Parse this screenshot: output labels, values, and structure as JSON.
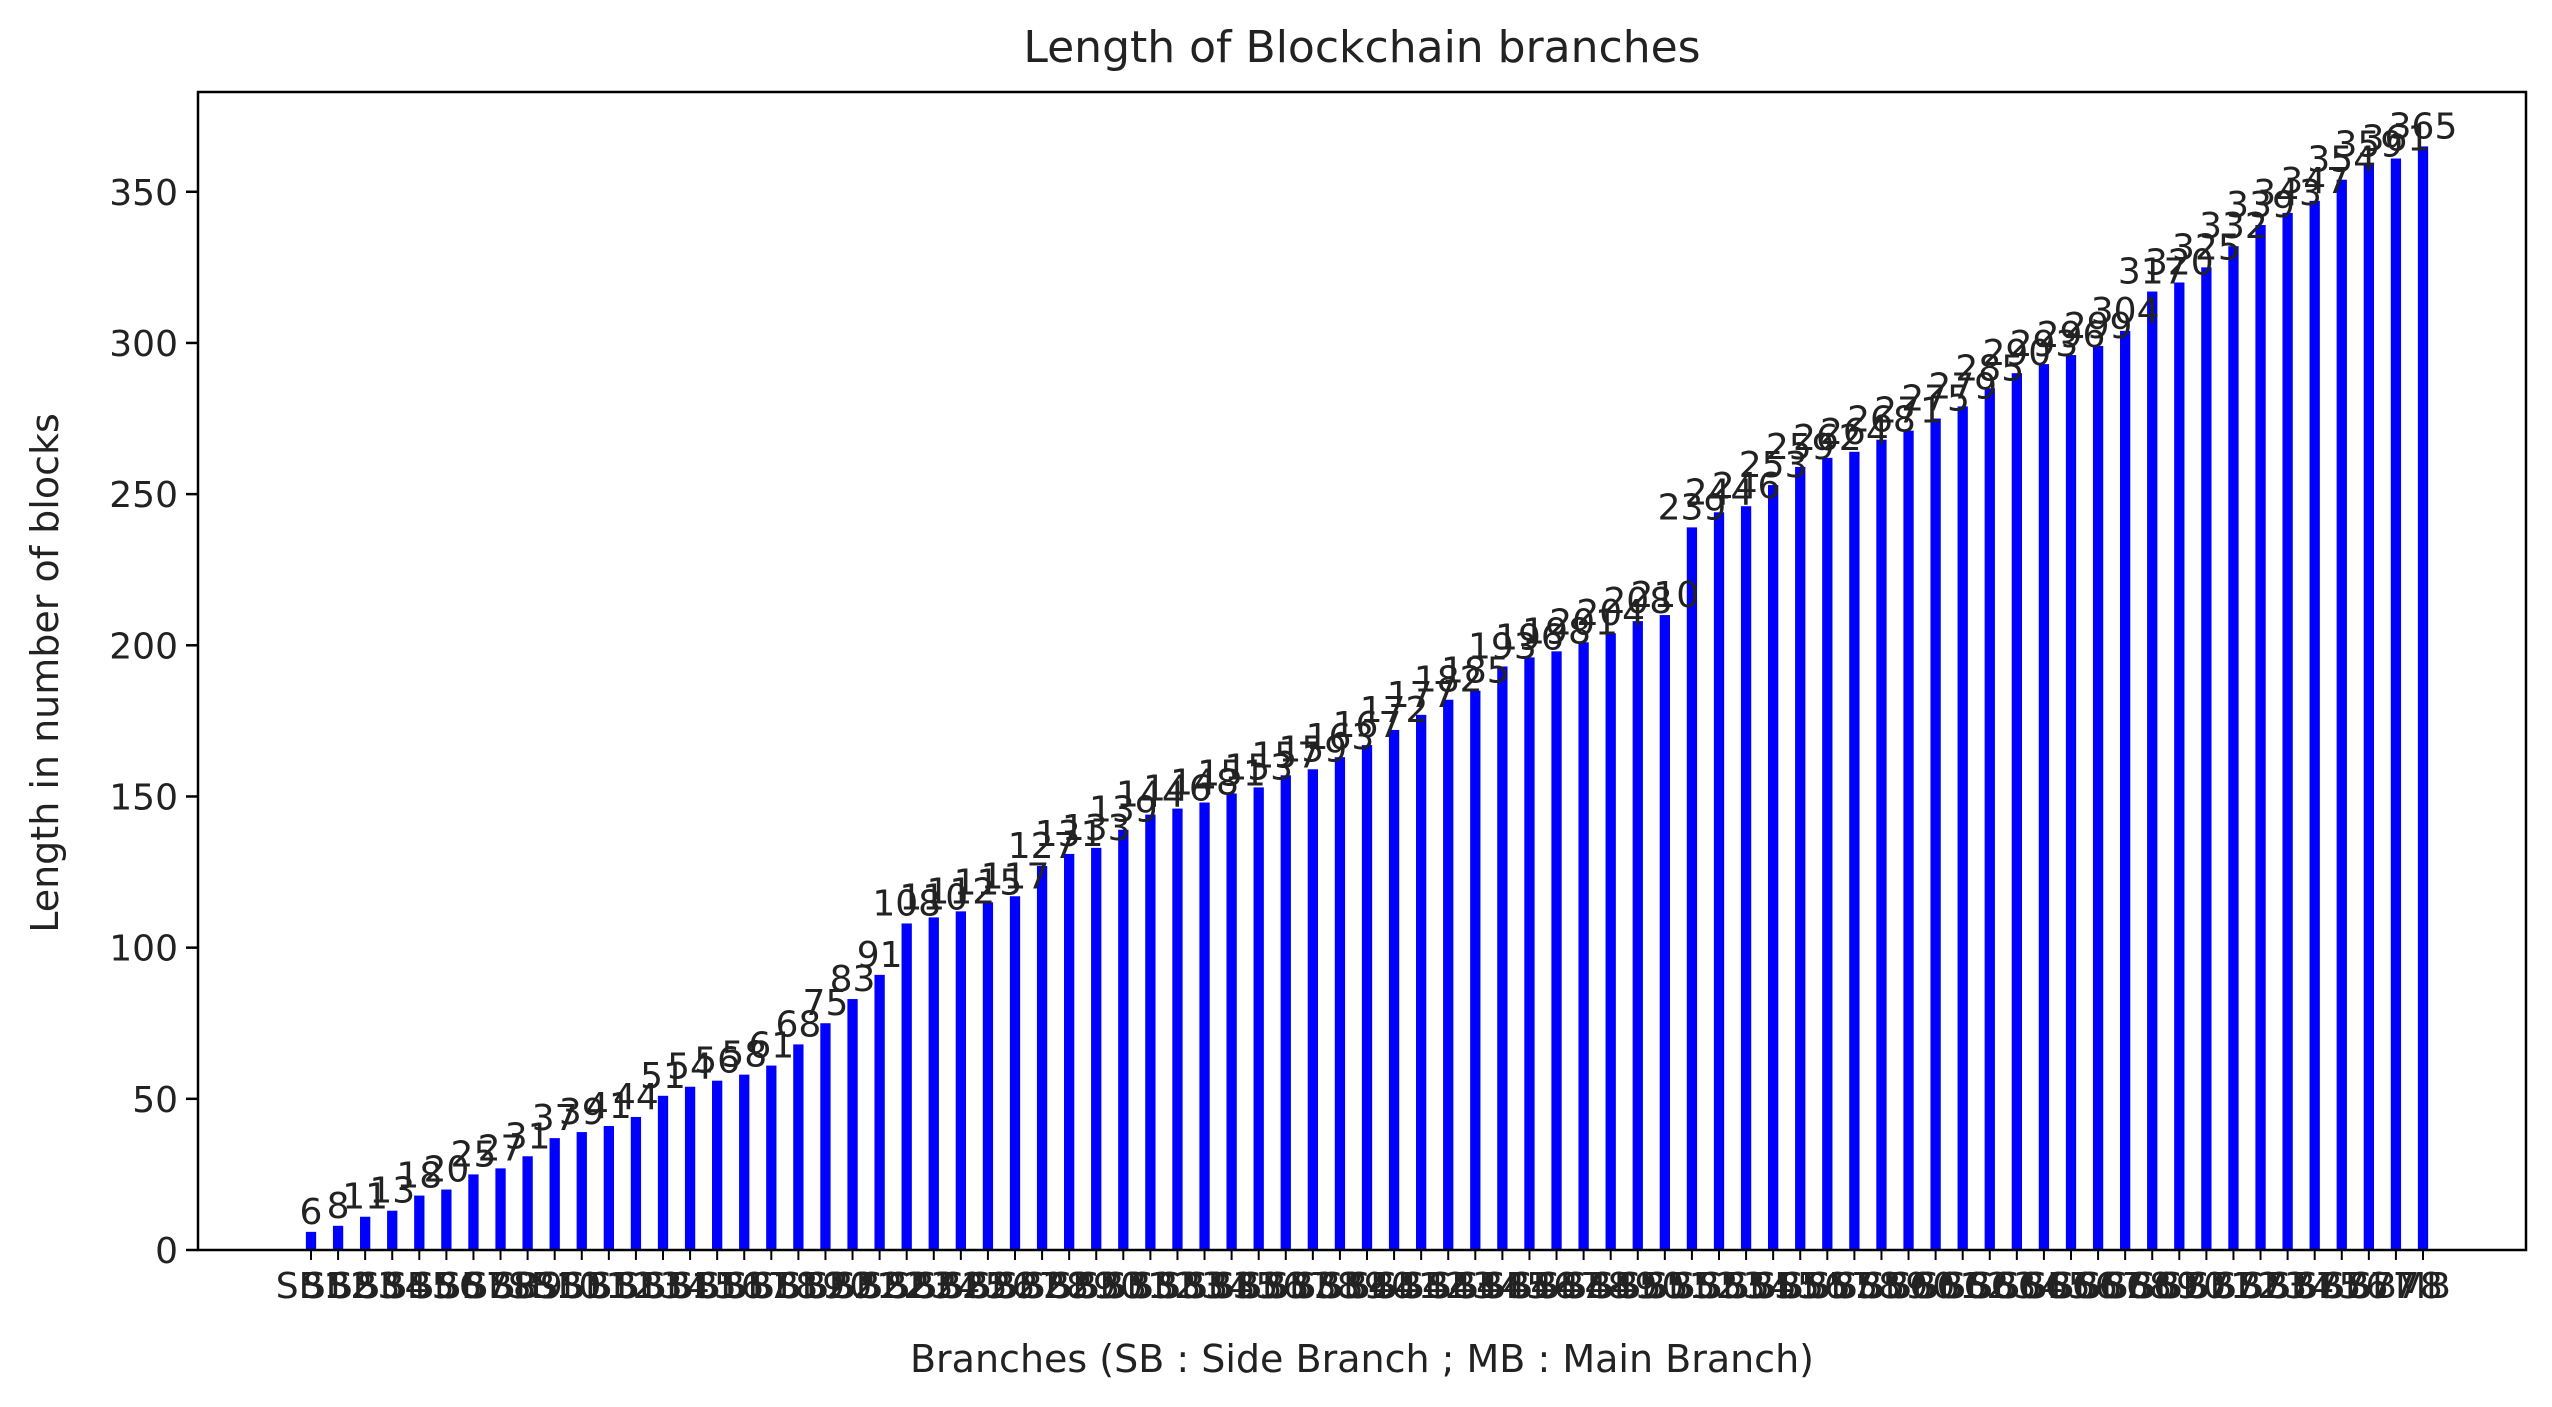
{
  "chart_data": {
    "type": "bar",
    "title": "Length of Blockchain branches",
    "xlabel": "Branches (SB : Side Branch ; MB : Main Branch)",
    "ylabel": "Length in number of blocks",
    "ylim": [
      0,
      383
    ],
    "yticks": [
      0,
      50,
      100,
      150,
      200,
      250,
      300,
      350
    ],
    "bar_color": "#0000ff",
    "grid": false,
    "categories": [
      "SB1",
      "SB2",
      "SB3",
      "SB4",
      "SB5",
      "SB6",
      "SB7",
      "SB8",
      "SB9",
      "SB10",
      "SB11",
      "SB12",
      "SB13",
      "SB14",
      "SB15",
      "SB16",
      "SB17",
      "SB18",
      "SB19",
      "SB20",
      "SB21",
      "SB22",
      "SB23",
      "SB24",
      "SB25",
      "SB26",
      "SB27",
      "SB28",
      "SB29",
      "SB30",
      "SB31",
      "SB32",
      "SB33",
      "SB34",
      "SB35",
      "SB36",
      "SB37",
      "SB38",
      "SB39",
      "SB40",
      "SB41",
      "SB42",
      "SB43",
      "SB44",
      "SB45",
      "SB46",
      "SB47",
      "SB48",
      "SB49",
      "SB50",
      "SB51",
      "SB52",
      "SB53",
      "SB54",
      "SB55",
      "SB56",
      "SB57",
      "SB58",
      "SB59",
      "SB60",
      "SB61",
      "SB62",
      "SB63",
      "SB64",
      "SB65",
      "SB66",
      "SB67",
      "SB68",
      "SB69",
      "SB70",
      "SB71",
      "SB72",
      "SB73",
      "SB74",
      "SB75",
      "SB76",
      "SB77",
      "SB78",
      "MB"
    ],
    "values": [
      6,
      8,
      11,
      13,
      18,
      20,
      25,
      27,
      31,
      37,
      39,
      41,
      44,
      51,
      54,
      56,
      58,
      61,
      68,
      75,
      83,
      91,
      108,
      110,
      112,
      115,
      117,
      127,
      131,
      133,
      139,
      144,
      146,
      148,
      151,
      153,
      157,
      159,
      163,
      167,
      172,
      177,
      182,
      185,
      193,
      196,
      198,
      201,
      204,
      208,
      210,
      239,
      244,
      246,
      253,
      259,
      262,
      264,
      268,
      271,
      275,
      279,
      285,
      290,
      293,
      296,
      299,
      304,
      317,
      320,
      325,
      332,
      339,
      343,
      347,
      354,
      359,
      361,
      365
    ]
  }
}
